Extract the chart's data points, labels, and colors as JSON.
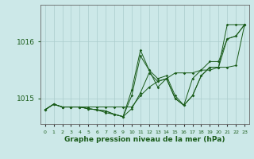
{
  "title": "Graphe pression niveau de la mer (hPa)",
  "bg_color": "#cce8e8",
  "grid_color": "#aacccc",
  "line_color": "#1a5c1a",
  "x_labels": [
    "0",
    "1",
    "2",
    "3",
    "4",
    "5",
    "6",
    "7",
    "8",
    "9",
    "10",
    "11",
    "12",
    "13",
    "14",
    "15",
    "16",
    "17",
    "18",
    "19",
    "20",
    "21",
    "22",
    "23"
  ],
  "ylim": [
    1014.55,
    1016.65
  ],
  "yticks": [
    1015.0,
    1016.0
  ],
  "series": [
    [
      1014.8,
      1014.9,
      1014.85,
      1014.85,
      1014.85,
      1014.82,
      1014.8,
      1014.75,
      1014.72,
      1014.68,
      1014.82,
      1015.1,
      1015.45,
      1015.3,
      1015.35,
      1015.0,
      1014.88,
      1015.05,
      1015.4,
      1015.55,
      1015.55,
      1016.05,
      1016.1,
      1016.3
    ],
    [
      1014.8,
      1014.9,
      1014.85,
      1014.85,
      1014.85,
      1014.85,
      1014.85,
      1014.85,
      1014.85,
      1014.85,
      1014.85,
      1015.05,
      1015.2,
      1015.3,
      1015.35,
      1015.45,
      1015.45,
      1015.45,
      1015.5,
      1015.5,
      1015.55,
      1015.55,
      1015.58,
      1016.3
    ],
    [
      1014.8,
      1014.9,
      1014.85,
      1014.85,
      1014.85,
      1014.82,
      1014.8,
      1014.78,
      1014.72,
      1014.68,
      1015.05,
      1015.75,
      1015.5,
      1015.2,
      1015.35,
      1015.0,
      1014.88,
      1015.35,
      1015.5,
      1015.65,
      1015.65,
      1016.05,
      1016.1,
      1016.3
    ],
    [
      1014.8,
      1014.9,
      1014.85,
      1014.85,
      1014.85,
      1014.82,
      1014.8,
      1014.78,
      1014.72,
      1014.68,
      1015.15,
      1015.85,
      1015.5,
      1015.35,
      1015.4,
      1015.05,
      1014.88,
      1015.05,
      1015.4,
      1015.55,
      1015.55,
      1016.3,
      1016.3,
      1016.3
    ]
  ],
  "figsize": [
    3.2,
    2.0
  ],
  "dpi": 100
}
